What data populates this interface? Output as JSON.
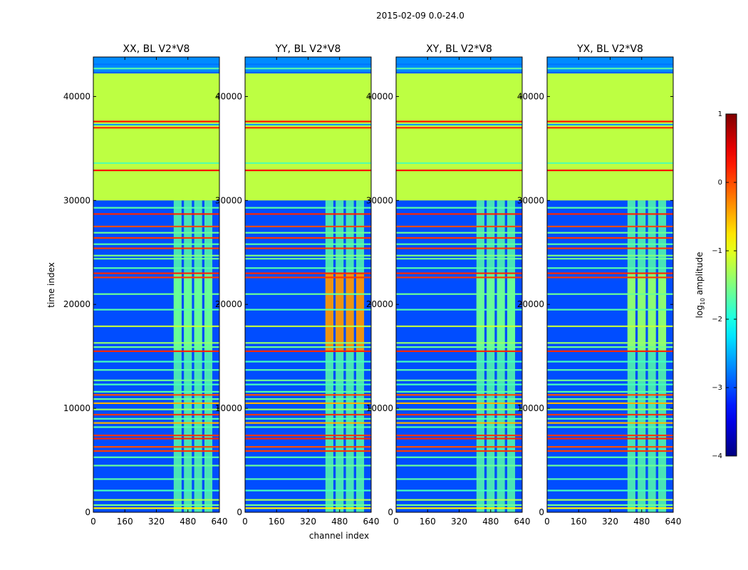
{
  "chart_data": {
    "type": "heatmap",
    "suptitle": "2015-02-09 0.0-24.0",
    "xlabel": "channel index",
    "ylabel": "time index",
    "xlim": [
      0,
      640
    ],
    "ylim": [
      0,
      43800
    ],
    "xticks": [
      0,
      160,
      320,
      480,
      640
    ],
    "yticks": [
      0,
      10000,
      20000,
      30000,
      40000
    ],
    "colorbar": {
      "label_main": "log",
      "label_sub": "10",
      "label_rest": " amplitude",
      "range": [
        -4,
        1
      ],
      "ticks": [
        1,
        0,
        -1,
        -2,
        -3,
        -4
      ],
      "tick_labels": [
        "1",
        "0",
        "−1",
        "−2",
        "−3",
        "−4"
      ],
      "colormap": "jet"
    },
    "panels": [
      {
        "title": "XX, BL V2*V8",
        "band_value": -1.7,
        "tv_band_value": -1.6
      },
      {
        "title": "YY, BL V2*V8",
        "band_value": -1.7,
        "tv_band_value": -0.3
      },
      {
        "title": "XY, BL V2*V8",
        "band_value": -1.7,
        "tv_band_value": -1.6
      },
      {
        "title": "YX, BL V2*V8",
        "band_value": -1.7,
        "tv_band_value": -1.4
      }
    ],
    "regions": {
      "background_value": -3.0,
      "flat_band": {
        "t_start": 30000,
        "t_end": 42300,
        "value": -1.2
      },
      "top_noise": {
        "t_start": 42300,
        "t_end": 43800,
        "value": -2.7
      },
      "active_channels": [
        [
          408,
          448
        ],
        [
          460,
          500
        ],
        [
          512,
          552
        ],
        [
          564,
          604
        ]
      ],
      "flag_lines": [
        {
          "t": 400,
          "value": -0.8
        },
        {
          "t": 700,
          "value": -1.6
        },
        {
          "t": 1200,
          "value": -1.3
        },
        {
          "t": 2100,
          "value": -1.8
        },
        {
          "t": 3200,
          "value": -1.7
        },
        {
          "t": 4500,
          "value": -1.6
        },
        {
          "t": 5300,
          "value": -1.7
        },
        {
          "t": 5900,
          "value": 0.1
        },
        {
          "t": 6300,
          "value": 0.0
        },
        {
          "t": 7100,
          "value": 0.2
        },
        {
          "t": 7400,
          "value": 0.1
        },
        {
          "t": 8200,
          "value": -1.7
        },
        {
          "t": 8600,
          "value": -0.5
        },
        {
          "t": 9000,
          "value": -1.7
        },
        {
          "t": 9400,
          "value": 0.1
        },
        {
          "t": 9900,
          "value": -1.4
        },
        {
          "t": 10500,
          "value": -0.5
        },
        {
          "t": 10900,
          "value": -1.6
        },
        {
          "t": 11300,
          "value": 0.0
        },
        {
          "t": 11600,
          "value": -1.7
        },
        {
          "t": 12300,
          "value": -1.8
        },
        {
          "t": 12700,
          "value": -1.6
        },
        {
          "t": 13700,
          "value": -1.7
        },
        {
          "t": 14500,
          "value": -1.8
        },
        {
          "t": 15500,
          "value": 0.2
        },
        {
          "t": 15900,
          "value": -1.6
        },
        {
          "t": 16300,
          "value": -1.4
        },
        {
          "t": 17900,
          "value": -1.2
        },
        {
          "t": 19500,
          "value": -1.7
        },
        {
          "t": 21000,
          "value": -1.6
        },
        {
          "t": 22600,
          "value": 0.1
        },
        {
          "t": 23000,
          "value": 0.2
        },
        {
          "t": 23500,
          "value": -1.7
        },
        {
          "t": 24400,
          "value": -1.6
        },
        {
          "t": 24700,
          "value": -1.5
        },
        {
          "t": 25400,
          "value": 0.1
        },
        {
          "t": 25800,
          "value": -1.7
        },
        {
          "t": 26400,
          "value": 0.1
        },
        {
          "t": 26900,
          "value": -1.6
        },
        {
          "t": 27500,
          "value": 0.0
        },
        {
          "t": 28700,
          "value": 0.2
        },
        {
          "t": 29300,
          "value": -1.7
        },
        {
          "t": 32900,
          "value": 0.3
        },
        {
          "t": 33600,
          "value": -1.7
        },
        {
          "t": 37000,
          "value": 0.2
        },
        {
          "t": 37300,
          "value": -2.6
        },
        {
          "t": 37600,
          "value": 0.3
        },
        {
          "t": 42300,
          "value": -2.9
        },
        {
          "t": 42700,
          "value": -1.7
        },
        {
          "t": 43100,
          "value": -2.8
        }
      ]
    }
  }
}
